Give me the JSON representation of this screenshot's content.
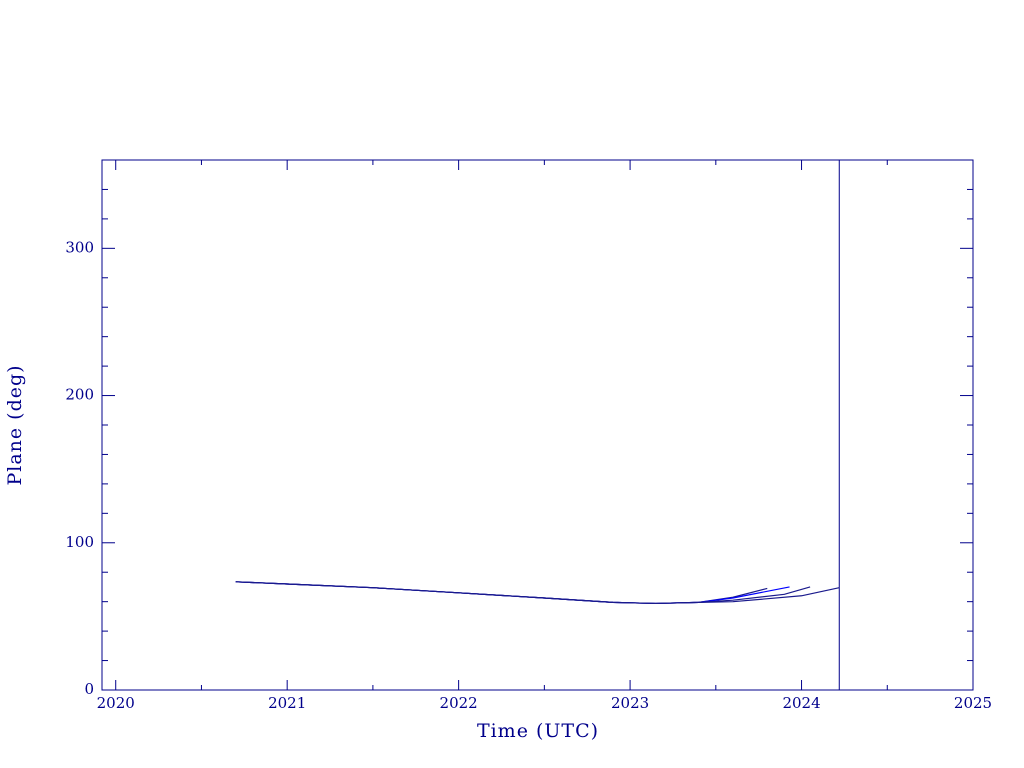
{
  "chart_data": {
    "type": "line",
    "x_label": "Time (UTC)",
    "y_label": "Plane (deg)",
    "axis_color": "#00008b",
    "xlim": [
      2019.92,
      2025
    ],
    "ylim": [
      0,
      360
    ],
    "xticks": [
      2020,
      2021,
      2022,
      2023,
      2024,
      2025
    ],
    "yticks": [
      0,
      100,
      200,
      300
    ],
    "xminorticks": [
      2020.5,
      2021.5,
      2022.5,
      2023.5,
      2024.5
    ],
    "yminorticks": [
      20,
      40,
      60,
      80,
      120,
      140,
      160,
      180,
      220,
      240,
      260,
      280,
      320,
      340
    ],
    "reference_line_x": 2024.22,
    "series": [
      {
        "color": "#1a1a8c",
        "x": [
          2020.7,
          2021.0,
          2021.5,
          2022.0,
          2022.5,
          2022.9,
          2023.15,
          2023.4,
          2023.6,
          2023.8
        ],
        "values": [
          73.5,
          72,
          69.5,
          66,
          62.5,
          59.5,
          58.8,
          59.5,
          63,
          69
        ]
      },
      {
        "color": "#0000ff",
        "x": [
          2020.7,
          2021.0,
          2021.5,
          2022.0,
          2022.5,
          2022.9,
          2023.15,
          2023.4,
          2023.6,
          2023.93
        ],
        "values": [
          73.5,
          72,
          69.5,
          66,
          62.5,
          59.5,
          58.8,
          59.5,
          62.5,
          70
        ]
      },
      {
        "color": "#1a1a8c",
        "x": [
          2020.7,
          2021.0,
          2021.5,
          2022.0,
          2022.5,
          2022.9,
          2023.15,
          2023.4,
          2023.6,
          2023.9,
          2024.05
        ],
        "values": [
          73.5,
          72,
          69.5,
          66,
          62.5,
          59.5,
          58.8,
          59.5,
          61,
          65,
          70
        ]
      },
      {
        "color": "#1a1a8c",
        "x": [
          2020.7,
          2021.0,
          2021.5,
          2022.0,
          2022.5,
          2022.9,
          2023.15,
          2023.4,
          2023.6,
          2024.0,
          2024.22
        ],
        "values": [
          73.5,
          72,
          69.5,
          66,
          62.5,
          59.5,
          58.8,
          59.5,
          60,
          64,
          69.5
        ]
      }
    ]
  }
}
